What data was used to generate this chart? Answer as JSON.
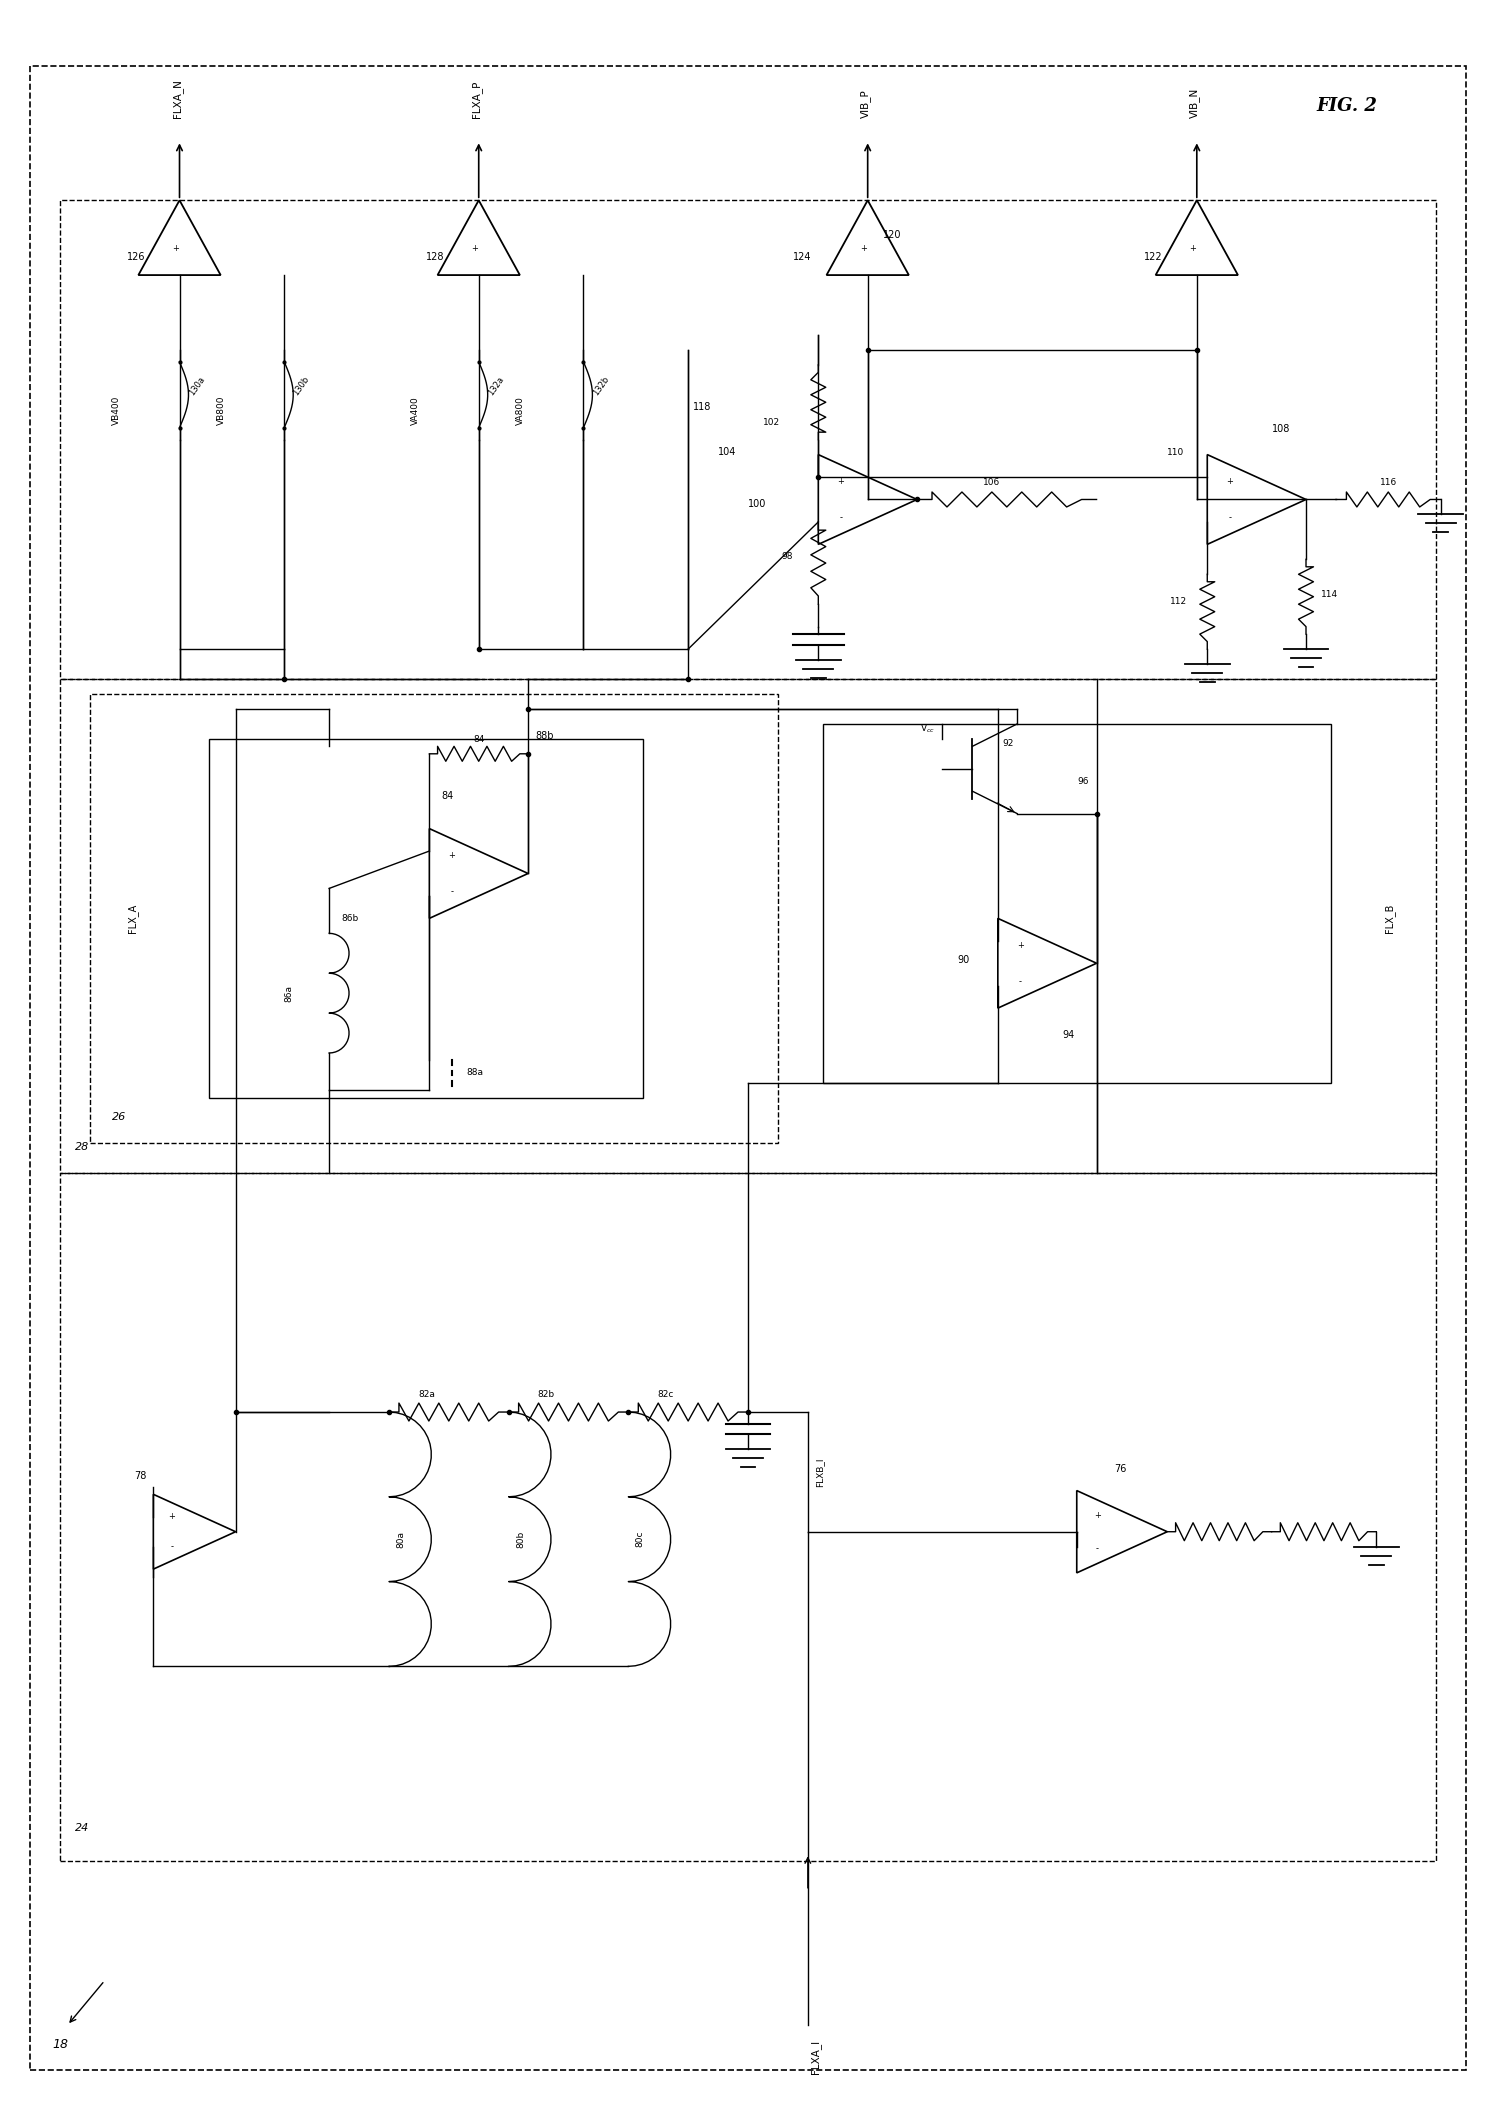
{
  "title": "FIG. 2",
  "bg_color": "#ffffff",
  "line_color": "#000000",
  "fig_width": 14.96,
  "fig_height": 21.06,
  "dpi": 100,
  "xlim": [
    0,
    100
  ],
  "ylim": [
    0,
    140
  ]
}
